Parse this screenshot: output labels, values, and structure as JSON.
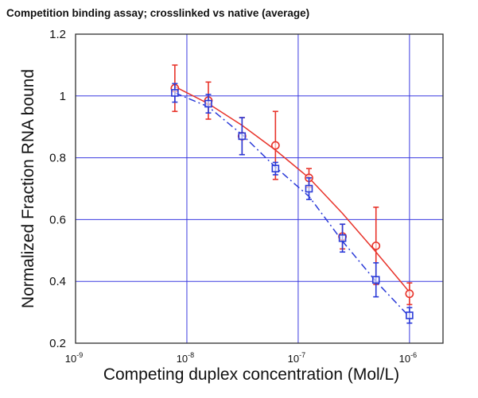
{
  "chart_data": {
    "type": "line",
    "title": "Competition binding assay; crosslinked vs native (average)",
    "xlabel": "Competing duplex concentration (Mol/L)",
    "ylabel": "Normalized Fraction RNA bound",
    "xscale": "log",
    "xlim": [
      1e-09,
      2e-06
    ],
    "ylim": [
      0.2,
      1.2
    ],
    "grid": true,
    "xticks": [
      {
        "value": 1e-09,
        "base": "10",
        "exp": "-9"
      },
      {
        "value": 1e-08,
        "base": "10",
        "exp": "-8"
      },
      {
        "value": 1e-07,
        "base": "10",
        "exp": "-7"
      },
      {
        "value": 1e-06,
        "base": "10",
        "exp": "-6"
      }
    ],
    "yticks": [
      {
        "value": 0.2,
        "label": "0.2"
      },
      {
        "value": 0.4,
        "label": "0.4"
      },
      {
        "value": 0.6,
        "label": "0.6"
      },
      {
        "value": 0.8,
        "label": "0.8"
      },
      {
        "value": 1.0,
        "label": "1"
      },
      {
        "value": 1.2,
        "label": "1.2"
      }
    ],
    "series": [
      {
        "color": "#e8332a",
        "marker": "circle",
        "line_style": "solid",
        "x": [
          7.8e-09,
          1.56e-08,
          3.13e-08,
          6.25e-08,
          1.25e-07,
          2.5e-07,
          5e-07,
          1e-06
        ],
        "y": [
          1.025,
          0.985,
          0.87,
          0.84,
          0.735,
          0.545,
          0.515,
          0.36
        ],
        "err": [
          0.075,
          0.06,
          0.06,
          0.11,
          0.03,
          0.04,
          0.125,
          0.035
        ],
        "fit": [
          1.03,
          0.975,
          0.905,
          0.825,
          0.735,
          0.62,
          0.495,
          0.365
        ]
      },
      {
        "color": "#2a3ad8",
        "marker": "square",
        "line_style": "dashed",
        "x": [
          7.8e-09,
          1.56e-08,
          3.13e-08,
          6.25e-08,
          1.25e-07,
          2.5e-07,
          5e-07,
          1e-06
        ],
        "y": [
          1.01,
          0.975,
          0.87,
          0.765,
          0.7,
          0.54,
          0.405,
          0.29
        ],
        "err": [
          0.03,
          0.03,
          0.06,
          0.02,
          0.035,
          0.045,
          0.055,
          0.025
        ],
        "fit": [
          1.01,
          0.965,
          0.875,
          0.77,
          0.675,
          0.53,
          0.4,
          0.285
        ]
      }
    ]
  }
}
